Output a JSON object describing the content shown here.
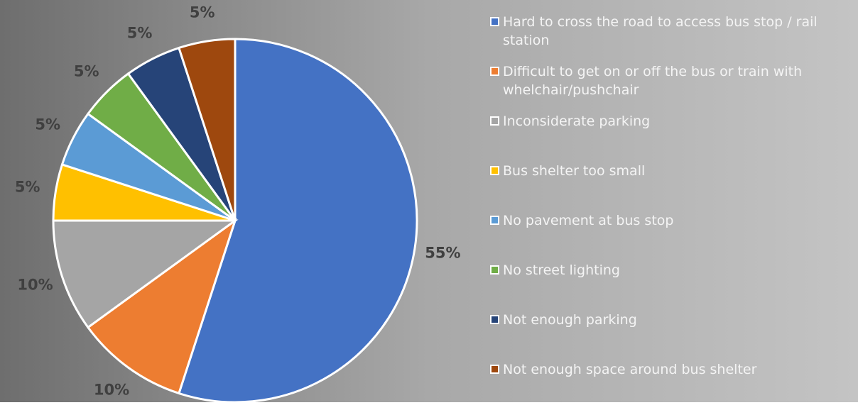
{
  "chart_data": {
    "type": "pie",
    "categories": [
      "Hard to cross the road to access bus stop / rail station",
      "Difficult to get on or off the bus or train with whelchair/pushchair",
      "Inconsiderate parking",
      "Bus shelter too small",
      "No pavement at bus stop",
      "No street lighting",
      "Not enough parking",
      "Not enough space around bus shelter"
    ],
    "values": [
      55,
      10,
      10,
      5,
      5,
      5,
      5,
      5
    ],
    "value_labels": [
      "55%",
      "10%",
      "10%",
      "5%",
      "5%",
      "5%",
      "5%",
      "5%"
    ],
    "colors": [
      "#4472c4",
      "#ed7d31",
      "#a5a5a5",
      "#ffc000",
      "#5b9bd5",
      "#70ad47",
      "#264478",
      "#9e480e"
    ],
    "legend": "right"
  }
}
